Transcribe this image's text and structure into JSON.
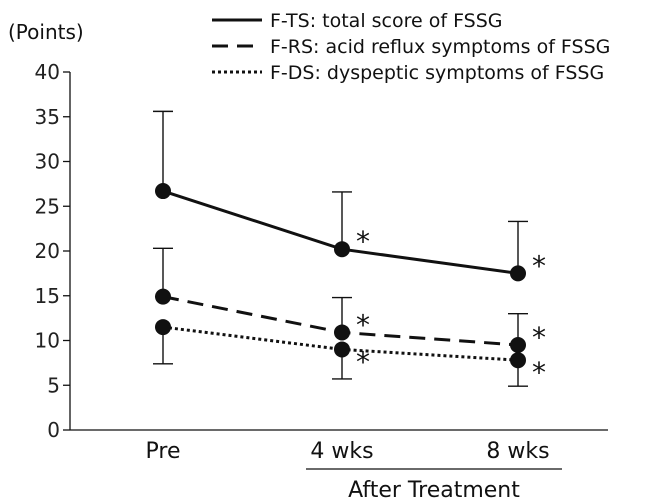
{
  "chart_data": {
    "type": "line",
    "categories": [
      "Pre",
      "4 wks",
      "8 wks"
    ],
    "ylabel": "(Points)",
    "ylim": [
      0,
      40
    ],
    "yticks": [
      0,
      5,
      10,
      15,
      20,
      25,
      30,
      35,
      40
    ],
    "group_label": "After Treatment",
    "grid": false,
    "legend_position": "top",
    "series": [
      {
        "name": "F-TS: total score of FSSG",
        "style": "solid",
        "values": [
          26.7,
          20.2,
          17.5
        ],
        "upper": [
          35.6,
          26.6,
          23.3
        ],
        "markers": [
          "",
          "*",
          "*"
        ]
      },
      {
        "name": "F-RS: acid reflux symptoms of FSSG",
        "style": "dashed",
        "values": [
          14.9,
          10.9,
          9.5
        ],
        "upper": [
          20.3,
          14.8,
          13.0
        ],
        "markers": [
          "",
          "*",
          "*"
        ]
      },
      {
        "name": "F-DS: dyspeptic symptoms of FSSG",
        "style": "dotted",
        "values": [
          11.5,
          9.0,
          7.8
        ],
        "lower": [
          7.4,
          5.7,
          4.9
        ],
        "markers": [
          "",
          "*",
          "*"
        ]
      }
    ],
    "colors": {
      "line": "#111111"
    }
  }
}
